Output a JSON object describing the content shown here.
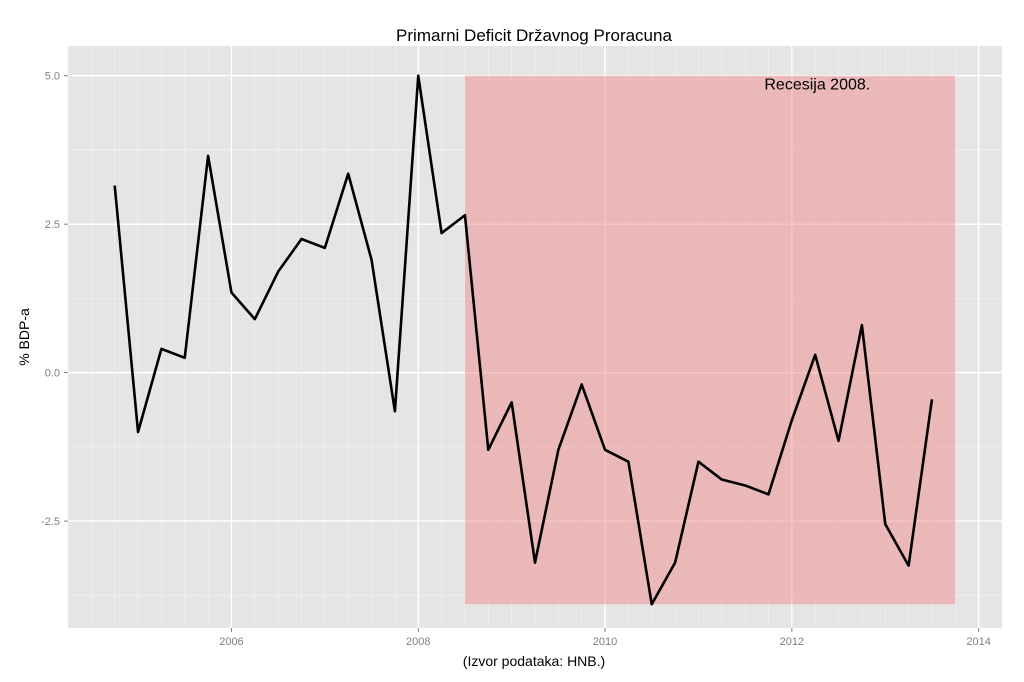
{
  "chart_data": {
    "type": "line",
    "title": "Primarni Deficit Državnog Proracuna",
    "xlabel": "(Izvor podataka: HNB.)",
    "ylabel": "% BDP-a",
    "xlim": [
      2004.25,
      2014.25
    ],
    "ylim": [
      -4.3,
      5.5
    ],
    "x_ticks": [
      2006,
      2008,
      2010,
      2012,
      2014
    ],
    "x_tick_labels": [
      "2006",
      "2008",
      "2010",
      "2012",
      "2014"
    ],
    "y_ticks": [
      5.0,
      2.5,
      0.0,
      -2.5
    ],
    "y_tick_labels": [
      "5.0",
      "2.5",
      "0.0",
      "-2.5"
    ],
    "grid": true,
    "series": [
      {
        "name": "Primarni deficit",
        "color": "#000000",
        "x": [
          2004.75,
          2005.0,
          2005.25,
          2005.5,
          2005.75,
          2006.0,
          2006.25,
          2006.5,
          2006.75,
          2007.0,
          2007.25,
          2007.5,
          2007.75,
          2008.0,
          2008.25,
          2008.5,
          2008.75,
          2009.0,
          2009.25,
          2009.5,
          2009.75,
          2010.0,
          2010.25,
          2010.5,
          2010.75,
          2011.0,
          2011.25,
          2011.5,
          2011.75,
          2012.0,
          2012.25,
          2012.5,
          2012.75,
          2013.0,
          2013.25,
          2013.5
        ],
        "values": [
          3.15,
          -1.0,
          0.4,
          0.25,
          3.65,
          1.35,
          0.9,
          1.7,
          2.25,
          2.1,
          3.35,
          1.9,
          -0.65,
          5.0,
          2.35,
          2.65,
          -1.3,
          -0.5,
          -3.2,
          -1.3,
          -0.2,
          -1.3,
          -1.5,
          -3.9,
          -3.2,
          -1.5,
          -1.8,
          -1.9,
          -2.05,
          -0.8,
          0.3,
          -1.15,
          0.8,
          -2.55,
          -3.25,
          -0.45
        ]
      }
    ],
    "shaded_region": {
      "x_start": 2008.5,
      "x_end": 2013.75,
      "y_start": -3.9,
      "y_end": 5.0,
      "color": "#f08080",
      "label": "Recesija 2008."
    },
    "colors": {
      "panel_background": "#e5e5e5",
      "grid_major": "#ffffff",
      "grid_minor": "#f2f2f2",
      "tick_text": "#7f7f7f"
    }
  }
}
